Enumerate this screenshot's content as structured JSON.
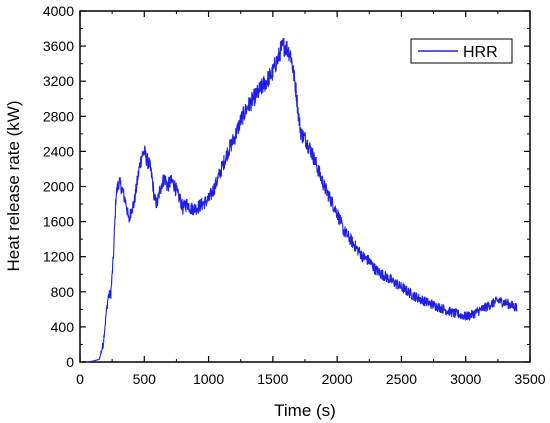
{
  "chart_data": {
    "type": "line",
    "title": "",
    "xlabel": "Time (s)",
    "ylabel": "Heat release rate (kW)",
    "xlim": [
      0,
      3500
    ],
    "ylim": [
      0,
      4000
    ],
    "x_ticks": [
      0,
      500,
      1000,
      1500,
      2000,
      2500,
      3000,
      3500
    ],
    "y_ticks": [
      0,
      400,
      800,
      1200,
      1600,
      2000,
      2400,
      2800,
      3200,
      3600,
      4000
    ],
    "grid": false,
    "legend_position": "top-right",
    "series": [
      {
        "name": "HRR",
        "color": "#1f1fe6",
        "x": [
          50,
          100,
          150,
          180,
          200,
          220,
          240,
          260,
          280,
          300,
          320,
          340,
          360,
          380,
          400,
          420,
          440,
          460,
          480,
          500,
          520,
          540,
          560,
          580,
          600,
          620,
          640,
          660,
          680,
          700,
          720,
          740,
          760,
          780,
          800,
          820,
          840,
          860,
          880,
          900,
          950,
          1000,
          1050,
          1100,
          1150,
          1200,
          1250,
          1300,
          1350,
          1400,
          1450,
          1500,
          1520,
          1540,
          1560,
          1580,
          1600,
          1620,
          1640,
          1660,
          1680,
          1700,
          1720,
          1750,
          1800,
          1850,
          1900,
          1950,
          2000,
          2050,
          2100,
          2150,
          2200,
          2250,
          2300,
          2400,
          2500,
          2600,
          2700,
          2800,
          2900,
          3000,
          3050,
          3100,
          3150,
          3200,
          3250,
          3300,
          3350,
          3400
        ],
        "y": [
          0,
          10,
          30,
          200,
          500,
          750,
          780,
          1200,
          1900,
          2050,
          2000,
          1900,
          1800,
          1600,
          1750,
          1800,
          2000,
          2200,
          2350,
          2400,
          2300,
          2250,
          2100,
          1850,
          1800,
          1950,
          2050,
          2100,
          2000,
          2050,
          2050,
          2000,
          1900,
          1850,
          1750,
          1800,
          1800,
          1750,
          1750,
          1750,
          1800,
          1850,
          2000,
          2200,
          2400,
          2550,
          2750,
          2900,
          3000,
          3100,
          3200,
          3300,
          3400,
          3450,
          3550,
          3600,
          3600,
          3550,
          3500,
          3300,
          3100,
          2800,
          2600,
          2550,
          2400,
          2200,
          2000,
          1850,
          1700,
          1500,
          1400,
          1300,
          1200,
          1150,
          1050,
          950,
          850,
          750,
          680,
          620,
          560,
          520,
          540,
          580,
          620,
          660,
          700,
          680,
          650,
          620
        ]
      }
    ]
  }
}
